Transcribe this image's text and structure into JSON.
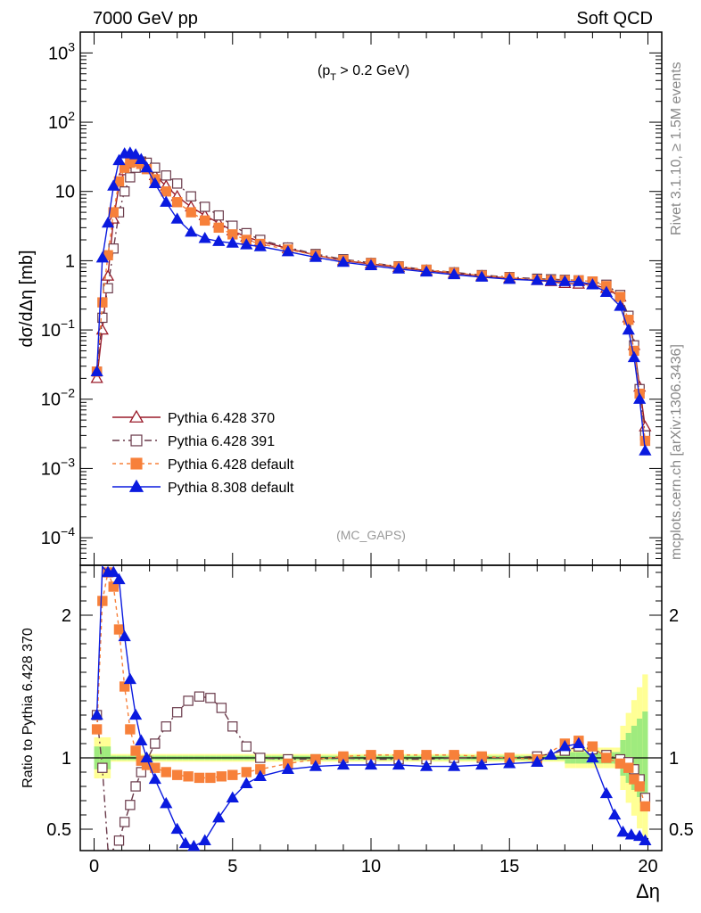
{
  "header": {
    "left": "7000 GeV pp",
    "right": "Soft QCD"
  },
  "side": {
    "rivet": "Rivet 3.1.10, ≥ 1.5M events",
    "mcplots": "mcplots.cern.ch [arXiv:1306.3436]"
  },
  "chart_data": [
    {
      "type": "line",
      "panel": "main",
      "ylabel": "dσ/dΔη [mb]",
      "annotation": "(p_T > 0.2 GeV)",
      "annotation_main": "(p",
      "annotation_sub": "T",
      "annotation_rest": " > 0.2 GeV)",
      "watermark": "(MC_GAPS)",
      "yscale": "log",
      "xlim": [
        -0.5,
        20.5
      ],
      "ylim": [
        4e-05,
        2000
      ],
      "yticks": [
        {
          "value": 0.0001,
          "base": "10",
          "exp": "−4"
        },
        {
          "value": 0.001,
          "base": "10",
          "exp": "−3"
        },
        {
          "value": 0.01,
          "base": "10",
          "exp": "−2"
        },
        {
          "value": 0.1,
          "base": "10",
          "exp": "−1"
        },
        {
          "value": 1,
          "base": "1",
          "exp": ""
        },
        {
          "value": 10,
          "base": "10",
          "exp": ""
        },
        {
          "value": 100,
          "base": "10",
          "exp": "2"
        },
        {
          "value": 1000,
          "base": "10",
          "exp": "3"
        }
      ],
      "legend_position": "middle-left",
      "series": [
        {
          "name": "Pythia 6.428 370",
          "color": "#9a1b2a",
          "marker": "triangle-open",
          "dash": "",
          "x": [
            0.1,
            0.3,
            0.5,
            0.7,
            0.9,
            1.1,
            1.3,
            1.5,
            1.7,
            1.9,
            2.2,
            2.6,
            3.0,
            3.5,
            4.0,
            4.5,
            5.0,
            5.5,
            6.0,
            7.0,
            8.0,
            9.0,
            10.0,
            11.0,
            12.0,
            13.0,
            14.0,
            15.0,
            16.0,
            16.5,
            17.0,
            17.5,
            18.0,
            18.5,
            19.0,
            19.3,
            19.5,
            19.7,
            19.9
          ],
          "y": [
            0.02,
            0.1,
            0.6,
            4,
            12,
            20,
            25,
            27,
            25,
            22,
            17,
            12,
            8.5,
            6,
            4.5,
            3.5,
            2.7,
            2.2,
            1.9,
            1.5,
            1.2,
            1.0,
            0.9,
            0.8,
            0.72,
            0.66,
            0.6,
            0.56,
            0.52,
            0.5,
            0.47,
            0.46,
            0.45,
            0.4,
            0.3,
            0.15,
            0.06,
            0.015,
            0.004
          ]
        },
        {
          "name": "Pythia 6.428 391",
          "color": "#6a3a4a",
          "marker": "square-open",
          "dash": "8,4,2,4",
          "x": [
            0.1,
            0.3,
            0.5,
            0.7,
            0.9,
            1.1,
            1.3,
            1.5,
            1.7,
            1.9,
            2.2,
            2.6,
            3.0,
            3.5,
            4.0,
            4.5,
            5.0,
            5.5,
            6.0,
            7.0,
            8.0,
            9.0,
            10.0,
            11.0,
            12.0,
            13.0,
            14.0,
            15.0,
            16.0,
            16.5,
            17.0,
            17.5,
            18.0,
            18.5,
            19.0,
            19.3,
            19.5,
            19.7,
            19.9
          ],
          "y": [
            0.025,
            0.15,
            0.4,
            1.5,
            5,
            10,
            16,
            22,
            27,
            26,
            22,
            17,
            13,
            8.5,
            6,
            4.5,
            3.2,
            2.5,
            2.0,
            1.55,
            1.25,
            1.05,
            0.93,
            0.83,
            0.74,
            0.68,
            0.62,
            0.58,
            0.55,
            0.54,
            0.53,
            0.52,
            0.5,
            0.45,
            0.32,
            0.16,
            0.06,
            0.014,
            0.003
          ]
        },
        {
          "name": "Pythia 6.428 default",
          "color": "#f7803a",
          "marker": "square-filled",
          "dash": "4,4",
          "x": [
            0.1,
            0.3,
            0.5,
            0.7,
            0.9,
            1.1,
            1.3,
            1.5,
            1.7,
            1.9,
            2.2,
            2.6,
            3.0,
            3.5,
            4.0,
            4.5,
            5.0,
            5.5,
            6.0,
            7.0,
            8.0,
            9.0,
            10.0,
            11.0,
            12.0,
            13.0,
            14.0,
            15.0,
            16.0,
            16.5,
            17.0,
            17.5,
            18.0,
            18.5,
            19.0,
            19.3,
            19.5,
            19.7,
            19.9
          ],
          "y": [
            0.025,
            0.25,
            1.2,
            5,
            14,
            22,
            26,
            27,
            25,
            21,
            15,
            10,
            7,
            5,
            3.8,
            3.0,
            2.4,
            2.0,
            1.75,
            1.45,
            1.2,
            1.02,
            0.92,
            0.82,
            0.74,
            0.67,
            0.61,
            0.57,
            0.53,
            0.52,
            0.52,
            0.52,
            0.5,
            0.43,
            0.3,
            0.14,
            0.05,
            0.012,
            0.0025
          ]
        },
        {
          "name": "Pythia 8.308 default",
          "color": "#0a1adf",
          "marker": "triangle-filled",
          "dash": "",
          "x": [
            0.1,
            0.3,
            0.5,
            0.7,
            0.9,
            1.1,
            1.3,
            1.5,
            1.7,
            1.9,
            2.2,
            2.6,
            3.0,
            3.5,
            4.0,
            4.5,
            5.0,
            5.5,
            6.0,
            7.0,
            8.0,
            9.0,
            10.0,
            11.0,
            12.0,
            13.0,
            14.0,
            15.0,
            16.0,
            16.5,
            17.0,
            17.5,
            18.0,
            18.5,
            19.0,
            19.3,
            19.5,
            19.7,
            19.9
          ],
          "y": [
            0.025,
            1.1,
            3.5,
            12,
            28,
            35,
            36,
            34,
            29,
            22,
            13,
            7,
            4,
            2.6,
            2.1,
            1.9,
            1.8,
            1.7,
            1.6,
            1.35,
            1.12,
            0.95,
            0.85,
            0.76,
            0.69,
            0.63,
            0.58,
            0.54,
            0.52,
            0.51,
            0.5,
            0.5,
            0.45,
            0.35,
            0.22,
            0.1,
            0.04,
            0.01,
            0.0018
          ]
        }
      ]
    },
    {
      "type": "line",
      "panel": "ratio",
      "ylabel": "Ratio to Pythia 6.428 370",
      "xlabel": "Δη",
      "xlim": [
        -0.5,
        20.5
      ],
      "ylim": [
        0.35,
        2.35
      ],
      "xticks": [
        0,
        5,
        10,
        15,
        20
      ],
      "xtick_labels": [
        "0",
        "5",
        "10",
        "15",
        "20"
      ],
      "yticks": [
        0.5,
        1,
        2
      ],
      "ytick_labels": [
        "0.5",
        "1",
        "2"
      ],
      "reference_band": true,
      "series": [
        {
          "name": "Pythia 6.428 391",
          "color": "#6a3a4a",
          "marker": "square-open",
          "dash": "8,4,2,4",
          "x": [
            0.1,
            0.3,
            0.5,
            0.7,
            0.9,
            1.1,
            1.3,
            1.5,
            1.7,
            1.9,
            2.2,
            2.6,
            3.0,
            3.4,
            3.8,
            4.2,
            4.6,
            5.0,
            5.5,
            6.0,
            7.0,
            8.0,
            9.0,
            10.0,
            11.0,
            12.0,
            13.0,
            14.0,
            15.0,
            16.0,
            17.0,
            17.5,
            18.0,
            18.5,
            19.0,
            19.3,
            19.5,
            19.7,
            19.9
          ],
          "y": [
            1.3,
            0.93,
            0.35,
            0.35,
            0.42,
            0.55,
            0.67,
            0.8,
            0.9,
            0.98,
            1.1,
            1.22,
            1.32,
            1.4,
            1.43,
            1.42,
            1.35,
            1.22,
            1.08,
            1.0,
            0.99,
            0.99,
            1.0,
            0.99,
            0.99,
            0.99,
            1.0,
            1.0,
            1.0,
            1.01,
            1.05,
            1.08,
            1.06,
            1.02,
            0.99,
            0.97,
            0.92,
            0.85,
            0.72
          ]
        },
        {
          "name": "Pythia 6.428 default",
          "color": "#f7803a",
          "marker": "square-filled",
          "dash": "4,4",
          "x": [
            0.1,
            0.3,
            0.5,
            0.7,
            0.9,
            1.1,
            1.3,
            1.5,
            1.7,
            1.9,
            2.2,
            2.6,
            3.0,
            3.4,
            3.8,
            4.2,
            4.6,
            5.0,
            5.5,
            6.0,
            7.0,
            8.0,
            9.0,
            10.0,
            11.0,
            12.0,
            13.0,
            14.0,
            15.0,
            16.0,
            17.0,
            17.5,
            18.0,
            18.5,
            19.0,
            19.3,
            19.5,
            19.7,
            19.9
          ],
          "y": [
            1.2,
            2.1,
            2.3,
            2.2,
            1.9,
            1.5,
            1.2,
            1.05,
            0.98,
            0.95,
            0.93,
            0.9,
            0.88,
            0.87,
            0.86,
            0.86,
            0.87,
            0.88,
            0.9,
            0.92,
            0.96,
            0.99,
            1.01,
            1.02,
            1.02,
            1.02,
            1.02,
            1.01,
            1.0,
            0.99,
            1.1,
            1.12,
            1.08,
            1.0,
            0.96,
            0.93,
            0.85,
            0.8,
            0.66
          ]
        },
        {
          "name": "Pythia 8.308 default",
          "color": "#0a1adf",
          "marker": "triangle-filled",
          "dash": "",
          "x": [
            0.1,
            0.3,
            0.5,
            0.7,
            0.9,
            1.1,
            1.3,
            1.5,
            1.7,
            1.9,
            2.2,
            2.6,
            3.0,
            3.3,
            3.6,
            4.0,
            4.5,
            5.0,
            5.5,
            6.0,
            7.0,
            8.0,
            9.0,
            10.0,
            11.0,
            12.0,
            13.0,
            14.0,
            15.0,
            16.0,
            16.5,
            17.0,
            17.5,
            18.0,
            18.5,
            18.8,
            19.1,
            19.4,
            19.7,
            19.9
          ],
          "y": [
            1.3,
            2.4,
            2.3,
            2.3,
            2.25,
            1.85,
            1.55,
            1.3,
            1.12,
            1.0,
            0.85,
            0.68,
            0.5,
            0.4,
            0.38,
            0.42,
            0.58,
            0.72,
            0.82,
            0.87,
            0.92,
            0.94,
            0.95,
            0.95,
            0.95,
            0.94,
            0.94,
            0.95,
            0.96,
            0.97,
            1.02,
            1.08,
            1.1,
            1.0,
            0.75,
            0.6,
            0.48,
            0.46,
            0.45,
            0.42
          ]
        }
      ]
    }
  ]
}
